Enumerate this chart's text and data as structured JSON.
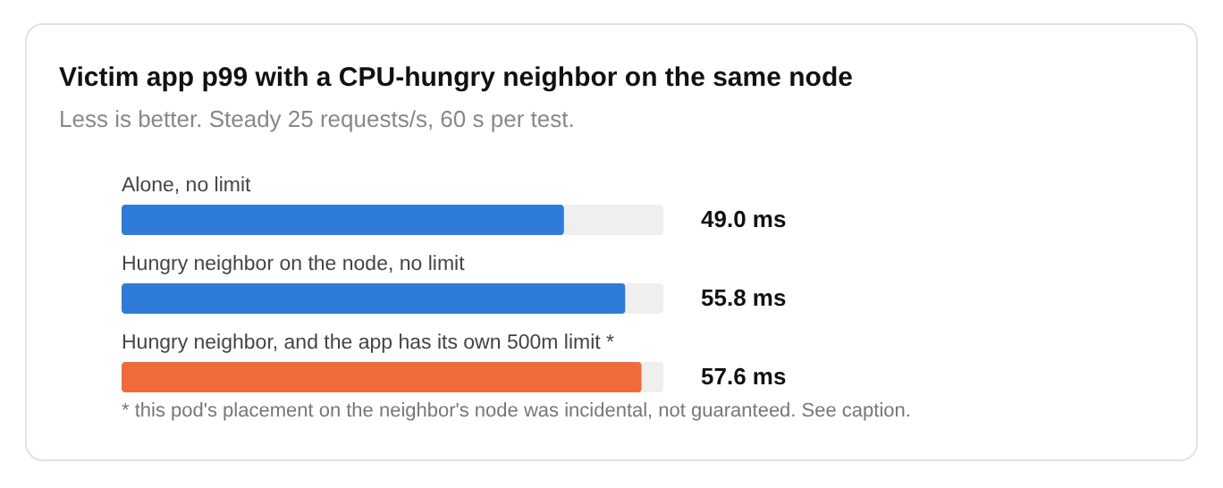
{
  "chart_data": {
    "type": "bar",
    "orientation": "horizontal",
    "title": "Victim app p99 with a CPU-hungry neighbor on the same node",
    "subtitle": "Less is better. Steady 25 requests/s, 60 s per test.",
    "categories": [
      "Alone, no limit",
      "Hungry neighbor on the node, no limit",
      "Hungry neighbor, and the app has its own 500m limit *"
    ],
    "values": [
      49.0,
      55.8,
      57.6
    ],
    "colors": [
      "#2f7bd8",
      "#2f7bd8",
      "#ef6b3a"
    ],
    "value_labels": [
      "49.0 ms",
      "55.8 ms",
      "57.6 ms"
    ],
    "xlim": [
      0,
      60
    ],
    "annotations": [
      "* this pod's placement on the neighbor's node was incidental, not guaranteed. See caption."
    ]
  }
}
